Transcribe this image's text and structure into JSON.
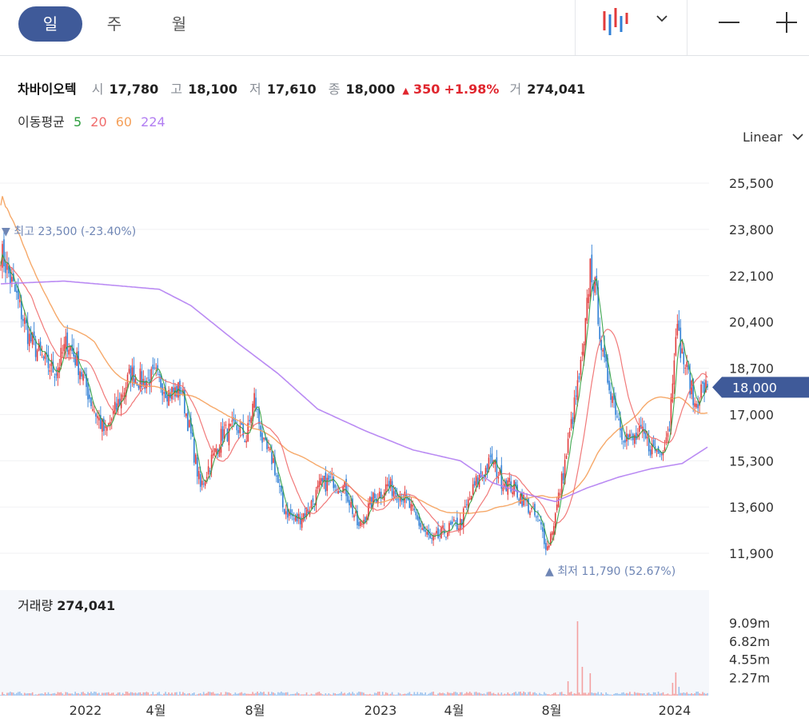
{
  "toolbar": {
    "tabs": [
      {
        "label": "일",
        "active": true
      },
      {
        "label": "주",
        "active": false
      },
      {
        "label": "월",
        "active": false
      }
    ],
    "chart_type_icon": "candlestick-icon",
    "dropdown_icon": "chevron-down-icon",
    "zoom_out_icon": "minus-icon",
    "zoom_in_icon": "plus-icon"
  },
  "quote": {
    "name": "차바이오텍",
    "open_label": "시",
    "open": "17,780",
    "high_label": "고",
    "high": "18,100",
    "low_label": "저",
    "low": "17,610",
    "close_label": "종",
    "close": "18,000",
    "change": "350",
    "change_pct": "+1.98%",
    "volume_label": "거",
    "volume": "274,041"
  },
  "ma": {
    "label": "이동평균",
    "periods": [
      {
        "label": "5",
        "color": "#2e9e3e"
      },
      {
        "label": "20",
        "color": "#f06b6b"
      },
      {
        "label": "60",
        "color": "#f5a05a"
      },
      {
        "label": "224",
        "color": "#b27ef2"
      }
    ]
  },
  "scale": {
    "label": "Linear"
  },
  "colors": {
    "up": "#e23b3b",
    "down": "#2f7fd6",
    "accent": "#3f5a99",
    "marker": "#6f86b5"
  },
  "chart_data": {
    "type": "candlestick",
    "y_ticks": [
      "25,500",
      "23,800",
      "22,100",
      "20,400",
      "18,700",
      "17,000",
      "15,300",
      "13,600",
      "11,900"
    ],
    "y_range": [
      11900,
      25500
    ],
    "x_ticks": [
      "2022",
      "4월",
      "8월",
      "2023",
      "4월",
      "8월",
      "2024"
    ],
    "current_price": "18,000",
    "high_marker": {
      "label": "최고",
      "value": "23,500",
      "pct": "(-23.40%)"
    },
    "low_marker": {
      "label": "최저",
      "value": "11,790",
      "pct": "(52.67%)"
    },
    "close_anchors": [
      [
        0,
        23000
      ],
      [
        10,
        21300
      ],
      [
        18,
        19800
      ],
      [
        28,
        18900
      ],
      [
        35,
        18600
      ],
      [
        42,
        19700
      ],
      [
        50,
        18700
      ],
      [
        58,
        17300
      ],
      [
        66,
        16300
      ],
      [
        74,
        17400
      ],
      [
        82,
        18500
      ],
      [
        90,
        18200
      ],
      [
        98,
        18400
      ],
      [
        106,
        17800
      ],
      [
        114,
        17900
      ],
      [
        120,
        16200
      ],
      [
        126,
        14300
      ],
      [
        132,
        15200
      ],
      [
        140,
        16300
      ],
      [
        150,
        16500
      ],
      [
        155,
        16100
      ],
      [
        160,
        17600
      ],
      [
        166,
        15800
      ],
      [
        172,
        15300
      ],
      [
        178,
        13600
      ],
      [
        186,
        13100
      ],
      [
        194,
        13500
      ],
      [
        202,
        14400
      ],
      [
        210,
        14600
      ],
      [
        218,
        14200
      ],
      [
        226,
        12800
      ],
      [
        234,
        13800
      ],
      [
        244,
        14400
      ],
      [
        254,
        14000
      ],
      [
        264,
        13000
      ],
      [
        272,
        12300
      ],
      [
        280,
        12700
      ],
      [
        290,
        13000
      ],
      [
        300,
        14500
      ],
      [
        310,
        15300
      ],
      [
        316,
        14600
      ],
      [
        324,
        14300
      ],
      [
        332,
        13700
      ],
      [
        340,
        13000
      ],
      [
        345,
        12100
      ],
      [
        350,
        13300
      ],
      [
        356,
        15200
      ],
      [
        362,
        17300
      ],
      [
        368,
        19400
      ],
      [
        372,
        22500
      ],
      [
        376,
        21300
      ],
      [
        380,
        19000
      ],
      [
        386,
        17700
      ],
      [
        392,
        16400
      ],
      [
        398,
        16000
      ],
      [
        404,
        16300
      ],
      [
        410,
        15800
      ],
      [
        416,
        15600
      ],
      [
        422,
        16600
      ],
      [
        426,
        20300
      ],
      [
        430,
        19200
      ],
      [
        434,
        18400
      ],
      [
        438,
        17300
      ],
      [
        442,
        17900
      ],
      [
        446,
        18000
      ]
    ],
    "ma224_anchors": [
      [
        0,
        21800
      ],
      [
        40,
        21900
      ],
      [
        60,
        21800
      ],
      [
        100,
        21600
      ],
      [
        120,
        21000
      ],
      [
        150,
        19600
      ],
      [
        175,
        18500
      ],
      [
        200,
        17200
      ],
      [
        230,
        16400
      ],
      [
        260,
        15700
      ],
      [
        290,
        15300
      ],
      [
        310,
        14500
      ],
      [
        330,
        14100
      ],
      [
        350,
        13800
      ],
      [
        370,
        14300
      ],
      [
        390,
        14700
      ],
      [
        410,
        15000
      ],
      [
        430,
        15200
      ],
      [
        446,
        15800
      ]
    ],
    "volume": {
      "label": "거래량",
      "value": "274,041",
      "y_ticks": [
        "9.09m",
        "6.82m",
        "4.55m",
        "2.27m"
      ],
      "y_range": [
        0,
        10000000
      ],
      "spikes": [
        [
          358,
          1800000
        ],
        [
          364,
          9300000
        ],
        [
          367,
          3600000
        ],
        [
          372,
          2800000
        ],
        [
          424,
          1600000
        ],
        [
          426,
          2900000
        ],
        [
          428,
          1100000
        ]
      ],
      "baseline": 300000
    }
  }
}
